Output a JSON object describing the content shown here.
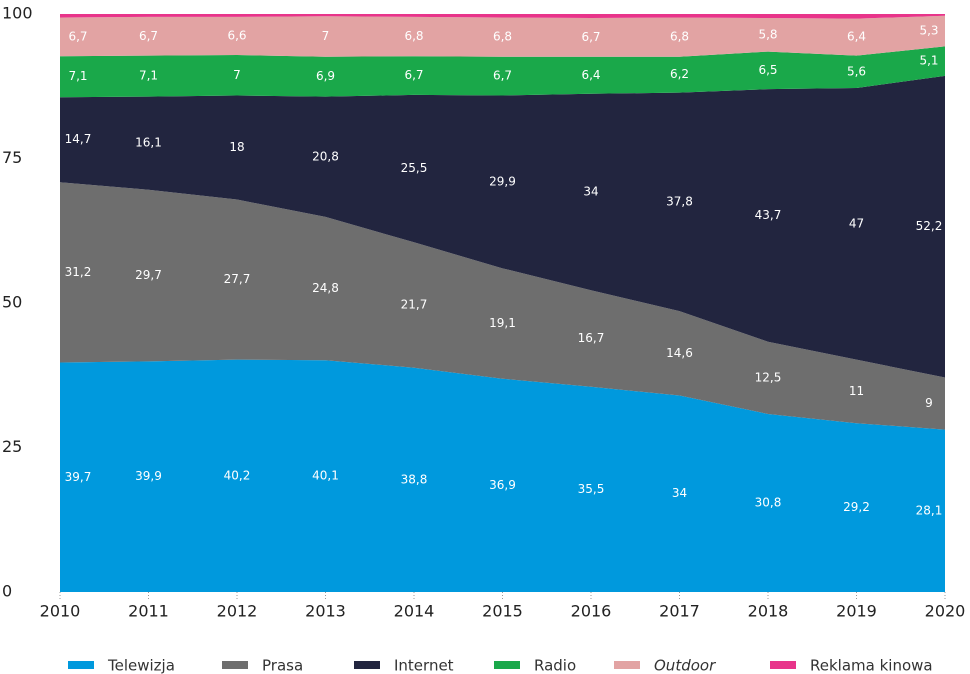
{
  "chart_data": {
    "type": "stacked_area",
    "x": [
      2010,
      2011,
      2012,
      2013,
      2014,
      2015,
      2016,
      2017,
      2018,
      2019,
      2020
    ],
    "xlim": [
      2010,
      2020
    ],
    "xticks": [
      2010,
      2011,
      2012,
      2013,
      2014,
      2015,
      2016,
      2017,
      2018,
      2019,
      2020
    ],
    "ylim": [
      0,
      100
    ],
    "yticks": [
      0,
      25,
      50,
      75,
      100
    ],
    "series": [
      {
        "name": "Telewizja",
        "color": "#0099dd",
        "values": [
          39.7,
          39.9,
          40.2,
          40.1,
          38.8,
          36.9,
          35.5,
          34,
          30.8,
          29.2,
          28.1
        ],
        "value_labels": [
          "39,7",
          "39,9",
          "40,2",
          "40,1",
          "38,8",
          "36,9",
          "35,5",
          "34",
          "30,8",
          "29,2",
          "28,1"
        ]
      },
      {
        "name": "Prasa",
        "color": "#6e6e6e",
        "values": [
          31.2,
          29.7,
          27.7,
          24.8,
          21.7,
          19.1,
          16.7,
          14.6,
          12.5,
          11,
          9
        ],
        "value_labels": [
          "31,2",
          "29,7",
          "27,7",
          "24,8",
          "21,7",
          "19,1",
          "16,7",
          "14,6",
          "12,5",
          "11",
          "9"
        ]
      },
      {
        "name": "Internet",
        "color": "#22253f",
        "values": [
          14.7,
          16.1,
          18,
          20.8,
          25.5,
          29.9,
          34,
          37.8,
          43.7,
          47,
          52.2
        ],
        "value_labels": [
          "14,7",
          "16,1",
          "18",
          "20,8",
          "25,5",
          "29,9",
          "34",
          "37,8",
          "43,7",
          "47",
          "52,2"
        ]
      },
      {
        "name": "Radio",
        "color": "#1aa84a",
        "values": [
          7.1,
          7.1,
          7,
          6.9,
          6.7,
          6.7,
          6.4,
          6.2,
          6.5,
          5.6,
          5.1
        ],
        "value_labels": [
          "7,1",
          "7,1",
          "7",
          "6,9",
          "6,7",
          "6,7",
          "6,4",
          "6,2",
          "6,5",
          "5,6",
          "5,1"
        ]
      },
      {
        "name": "Outdoor",
        "color": "#e2a3a3",
        "values": [
          6.7,
          6.7,
          6.6,
          7,
          6.8,
          6.8,
          6.7,
          6.8,
          5.8,
          6.4,
          5.3
        ],
        "value_labels": [
          "6,7",
          "6,7",
          "6,6",
          "7",
          "6,8",
          "6,8",
          "6,7",
          "6,8",
          "5,8",
          "6,4",
          "5,3"
        ]
      },
      {
        "name": "Reklama kinowa",
        "color": "#e8348a",
        "values": [
          0.6,
          0.5,
          0.5,
          0.4,
          0.5,
          0.6,
          0.7,
          0.6,
          0.7,
          0.8,
          0.3
        ]
      }
    ]
  }
}
